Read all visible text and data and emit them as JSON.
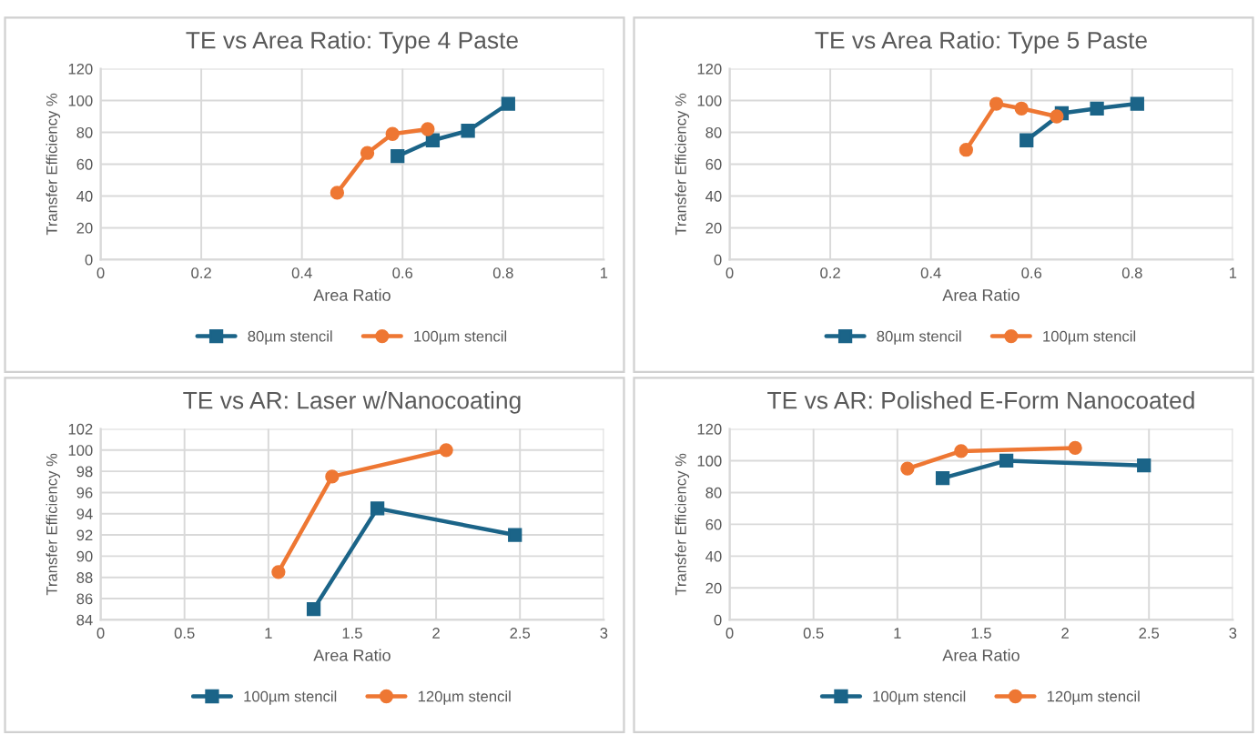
{
  "chart_data": [
    {
      "type": "line",
      "title": "TE vs Area Ratio: Type 4 Paste",
      "xlabel": "Area Ratio",
      "ylabel": "Transfer Efficiency %",
      "xlim": [
        0,
        1
      ],
      "xticks": [
        0,
        0.2,
        0.4,
        0.6,
        0.8,
        1
      ],
      "ylim": [
        0,
        120
      ],
      "yticks": [
        0,
        20,
        40,
        60,
        80,
        100,
        120
      ],
      "grid": true,
      "legend": "bottom",
      "series": [
        {
          "name": "80µm stencil",
          "color": "#1b6488",
          "marker": "square",
          "x": [
            0.59,
            0.66,
            0.73,
            0.81
          ],
          "values": [
            65,
            75,
            81,
            98
          ]
        },
        {
          "name": "100µm stencil",
          "color": "#ee7733",
          "marker": "circle",
          "x": [
            0.47,
            0.53,
            0.58,
            0.65
          ],
          "values": [
            42,
            67,
            79,
            82
          ]
        }
      ]
    },
    {
      "type": "line",
      "title": "TE vs Area Ratio: Type 5 Paste",
      "xlabel": "Area Ratio",
      "ylabel": "Transfer Efficiency %",
      "xlim": [
        0,
        1
      ],
      "xticks": [
        0,
        0.2,
        0.4,
        0.6,
        0.8,
        1
      ],
      "ylim": [
        0,
        120
      ],
      "yticks": [
        0,
        20,
        40,
        60,
        80,
        100,
        120
      ],
      "grid": true,
      "legend": "bottom",
      "series": [
        {
          "name": "80µm stencil",
          "color": "#1b6488",
          "marker": "square",
          "x": [
            0.59,
            0.66,
            0.73,
            0.81
          ],
          "values": [
            75,
            92,
            95,
            98
          ]
        },
        {
          "name": "100µm stencil",
          "color": "#ee7733",
          "marker": "circle",
          "x": [
            0.47,
            0.53,
            0.58,
            0.65
          ],
          "values": [
            69,
            98,
            95,
            90
          ]
        }
      ]
    },
    {
      "type": "line",
      "title": "TE vs AR: Laser w/Nanocoating",
      "xlabel": "Area Ratio",
      "ylabel": "Transfer Efficiency %",
      "xlim": [
        0,
        3
      ],
      "xticks": [
        0,
        0.5,
        1,
        1.5,
        2,
        2.5,
        3
      ],
      "ylim": [
        84,
        102
      ],
      "yticks": [
        84,
        86,
        88,
        90,
        92,
        94,
        96,
        98,
        100,
        102
      ],
      "grid": true,
      "legend": "bottom",
      "series": [
        {
          "name": "100µm stencil",
          "color": "#1b6488",
          "marker": "square",
          "x": [
            1.27,
            1.65,
            2.47
          ],
          "values": [
            85,
            94.5,
            92
          ]
        },
        {
          "name": "120µm stencil",
          "color": "#ee7733",
          "marker": "circle",
          "x": [
            1.06,
            1.38,
            2.06
          ],
          "values": [
            88.5,
            97.5,
            100
          ]
        }
      ]
    },
    {
      "type": "line",
      "title": "TE vs AR: Polished E-Form Nanocoated",
      "xlabel": "Area Ratio",
      "ylabel": "Transfer Efficiency %",
      "xlim": [
        0,
        3
      ],
      "xticks": [
        0,
        0.5,
        1,
        1.5,
        2,
        2.5,
        3
      ],
      "ylim": [
        0,
        120
      ],
      "yticks": [
        0,
        20,
        40,
        60,
        80,
        100,
        120
      ],
      "grid": true,
      "legend": "bottom",
      "series": [
        {
          "name": "100µm stencil",
          "color": "#1b6488",
          "marker": "square",
          "x": [
            1.27,
            1.65,
            2.47
          ],
          "values": [
            89,
            100,
            97
          ]
        },
        {
          "name": "120µm stencil",
          "color": "#ee7733",
          "marker": "circle",
          "x": [
            1.06,
            1.38,
            2.06
          ],
          "values": [
            95,
            106,
            108
          ]
        }
      ]
    }
  ]
}
